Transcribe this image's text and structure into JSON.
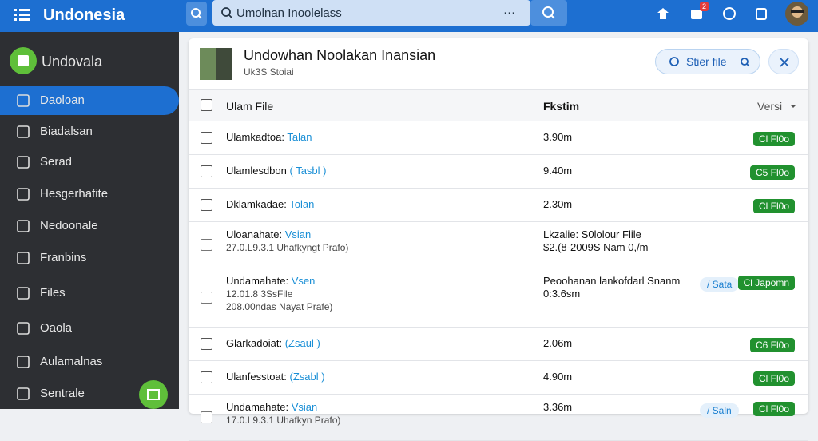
{
  "top_bar": {
    "brand": "Undonesia",
    "search_placeholder": "Umolnan Inoolelass",
    "search_more": "···",
    "notification_count": "2"
  },
  "sidebar": {
    "title": "Undovala",
    "items": [
      "Daoloan",
      "Biadalsan",
      "Serad",
      "Hesgerhafite",
      "Nedoonale",
      "Franbins",
      "Files",
      "Oaola",
      "Aulamalnas",
      "Sentrale"
    ]
  },
  "panel": {
    "title": "Undowhan Noolakan Inansian",
    "subtitle": "Uk3S Stoiai",
    "action": "Stier file"
  },
  "table": {
    "columns": [
      "Ulam File",
      "Fkstim",
      "Versi"
    ],
    "rows": [
      {
        "name": "Ulamkadtoa:",
        "link": "Talan",
        "size": [
          "3.90m"
        ],
        "badge": "Cl Fl0o"
      },
      {
        "name": "Ulamlesdbon",
        "link": "( Tasbl )",
        "size": [
          "9.40m"
        ],
        "badge": "C5 Fl0o"
      },
      {
        "name": "Dklamkadae:",
        "link": "Tolan",
        "size": [
          "2.30m"
        ],
        "badge": "Cl Fl0o"
      },
      {
        "name": "Uloanahate:",
        "link": "Vsian",
        "details": [
          "27.0.L9.3.1 Uhafkyngt Prafo)"
        ],
        "size": [
          "Lkzalie: S0lolour Flile",
          "$2.(8-2009S Nam 0,/m"
        ]
      },
      {
        "name": "Undamahate:",
        "link": "Vsen",
        "details": [
          "12.01.8 3SsFile",
          "208.00ndas Nayat Prafe)"
        ],
        "size": [
          "Peoohanan lankofdarl Snanm",
          "0:3.6sm"
        ],
        "tag": "/ Sata",
        "badge": "Cl Japomn"
      },
      {
        "name": "Glarkadoiat:",
        "link": "(Zsaul )",
        "size": [
          "2.06m"
        ],
        "badge": "C6 Fl0o"
      },
      {
        "name": "Ulanfesstoat:",
        "link": "(Zsabl )",
        "size": [
          "4.90m"
        ],
        "badge": "Cl Fl0o"
      },
      {
        "name": "Undamahate:",
        "link": "Vsian",
        "details": [
          "17.0.L9.3.1 Uhafkyn Prafo)"
        ],
        "size": [
          "3.36m"
        ],
        "tag": "/ Saln",
        "badge": "Cl Fl0o"
      }
    ]
  }
}
